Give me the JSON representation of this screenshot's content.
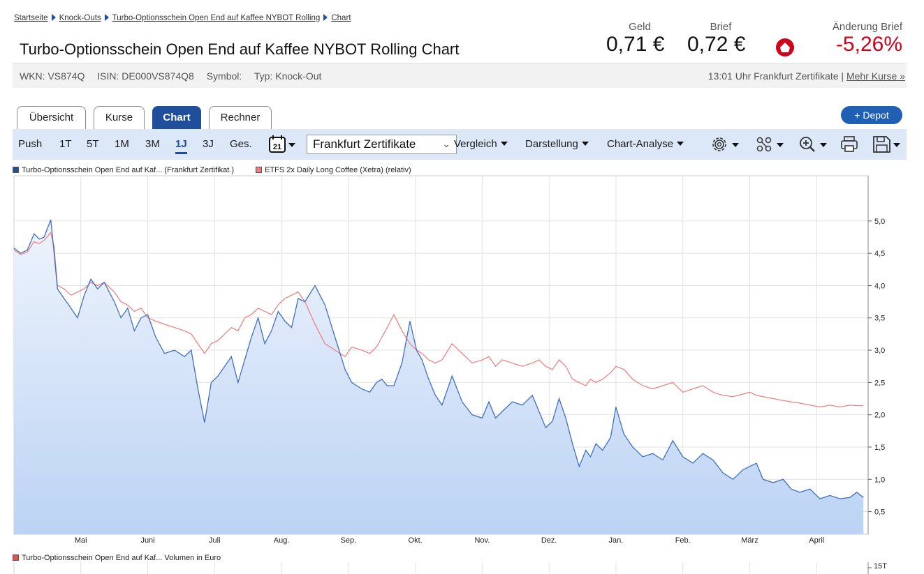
{
  "breadcrumb": {
    "items": [
      "Startseite",
      "Knock-Outs",
      "Turbo-Optionsschein Open End auf Kaffee NYBOT Rolling",
      "Chart"
    ]
  },
  "title": "Turbo-Optionsschein Open End auf Kaffee NYBOT Rolling Chart",
  "quote": {
    "geld_label": "Geld",
    "geld_value": "0,71 €",
    "brief_label": "Brief",
    "brief_value": "0,72 €",
    "change_label": "Änderung Brief",
    "change_value": "-5,26%",
    "change_color": "#d0021b"
  },
  "info": {
    "wkn": "WKN: VS874Q",
    "isin": "ISIN: DE000VS874Q8",
    "symbol": "Symbol:",
    "typ": "Typ: Knock-Out",
    "time_exchange": "13:01 Uhr Frankfurt Zertifikate |",
    "more_link": "Mehr Kurse »"
  },
  "tabs": [
    {
      "label": "Übersicht"
    },
    {
      "label": "Kurse"
    },
    {
      "label": "Chart"
    },
    {
      "label": "Rechner"
    }
  ],
  "depot_button": "+ Depot",
  "toolbar": {
    "periods": [
      "Push",
      "1T",
      "5T",
      "1M",
      "3M",
      "1J",
      "3J",
      "Ges."
    ],
    "active_period": "1J",
    "calendar_day": "21",
    "exchange_select": "Frankfurt Zertifikate",
    "menus": [
      "Vergleich",
      "Darstellung",
      "Chart-Analyse"
    ],
    "icons": [
      "settings-icon",
      "indicators-icon",
      "zoom-icon",
      "print-icon",
      "save-icon"
    ]
  },
  "colors": {
    "accent": "#1f4e9a",
    "series_main": "#3f6fc4",
    "series_compare": "#f27a7a",
    "area_top": "#eef4fd",
    "area_bottom": "#bcd3f4",
    "toolbar_bg": "#dce8f8"
  },
  "chart_data": {
    "type": "area",
    "title": "",
    "legend": [
      "Turbo-Optionsschein Open End auf Kaf... (Frankfurt Zertifikat.)",
      "ETFS 2x Daily Long Coffee (Xetra) (relativ)"
    ],
    "legend_position": "top-left",
    "x_ticks": [
      "Mai",
      "Juni",
      "Juli",
      "Aug.",
      "Sep.",
      "Okt.",
      "Nov.",
      "Dez.",
      "Jan.",
      "Feb.",
      "März",
      "April"
    ],
    "y_ticks": [
      "5,0",
      "4,5",
      "4,0",
      "3,5",
      "3,0",
      "2,5",
      "2,0",
      "1,5",
      "1,0",
      "0,5"
    ],
    "y_tick_values": [
      5.0,
      4.5,
      4.0,
      3.5,
      3.0,
      2.5,
      2.0,
      1.5,
      1.0,
      0.5
    ],
    "ylim": [
      0.15,
      5.7
    ],
    "xlim": [
      0,
      12.77
    ],
    "grid": true,
    "y_axis_side": "right",
    "series": [
      {
        "name": "Turbo-Optionsschein Open End auf Kaf... (Frankfurt Zertifikat.)",
        "style": "area",
        "x": [
          0,
          0.1,
          0.2,
          0.3,
          0.38,
          0.45,
          0.55,
          0.6,
          0.65,
          0.75,
          0.82,
          0.95,
          1.05,
          1.15,
          1.25,
          1.35,
          1.5,
          1.6,
          1.7,
          1.8,
          1.9,
          2.0,
          2.12,
          2.25,
          2.4,
          2.55,
          2.65,
          2.75,
          2.85,
          2.95,
          3.05,
          3.15,
          3.25,
          3.35,
          3.45,
          3.55,
          3.65,
          3.75,
          3.85,
          3.95,
          4.05,
          4.15,
          4.25,
          4.35,
          4.5,
          4.65,
          4.8,
          4.95,
          5.05,
          5.2,
          5.32,
          5.42,
          5.5,
          5.58,
          5.68,
          5.8,
          5.92,
          6.02,
          6.1,
          6.2,
          6.3,
          6.4,
          6.55,
          6.7,
          6.85,
          7.0,
          7.1,
          7.2,
          7.3,
          7.45,
          7.6,
          7.75,
          7.85,
          7.95,
          8.05,
          8.15,
          8.25,
          8.35,
          8.45,
          8.55,
          8.62,
          8.7,
          8.8,
          8.92,
          9.0,
          9.12,
          9.25,
          9.4,
          9.55,
          9.7,
          9.85,
          10.0,
          10.15,
          10.3,
          10.45,
          10.6,
          10.75,
          10.9,
          11.0,
          11.1,
          11.2,
          11.35,
          11.5,
          11.62,
          11.75,
          11.9,
          12.05,
          12.2,
          12.35,
          12.5,
          12.6,
          12.7
        ],
        "y": [
          4.58,
          4.5,
          4.55,
          4.8,
          4.72,
          4.75,
          5.02,
          4.5,
          3.95,
          3.8,
          3.7,
          3.5,
          3.85,
          4.1,
          3.95,
          4.05,
          3.75,
          3.5,
          3.65,
          3.3,
          3.5,
          3.55,
          3.2,
          2.95,
          3.0,
          2.9,
          3.0,
          2.4,
          1.88,
          2.5,
          2.6,
          2.75,
          2.9,
          2.5,
          2.85,
          3.2,
          3.5,
          3.1,
          3.3,
          3.6,
          3.45,
          3.35,
          3.8,
          3.75,
          4.0,
          3.7,
          3.2,
          2.7,
          2.5,
          2.4,
          2.35,
          2.5,
          2.55,
          2.45,
          2.45,
          2.8,
          3.45,
          3.0,
          2.85,
          2.55,
          2.3,
          2.15,
          2.6,
          2.2,
          2.0,
          1.95,
          2.2,
          1.95,
          2.05,
          2.2,
          2.15,
          2.3,
          2.05,
          1.8,
          1.9,
          2.25,
          1.95,
          1.55,
          1.2,
          1.45,
          1.35,
          1.55,
          1.45,
          1.65,
          2.12,
          1.7,
          1.5,
          1.35,
          1.4,
          1.3,
          1.6,
          1.35,
          1.25,
          1.4,
          1.3,
          1.1,
          1.0,
          1.15,
          1.2,
          1.25,
          1.0,
          0.95,
          1.0,
          0.85,
          0.8,
          0.85,
          0.7,
          0.75,
          0.7,
          0.72,
          0.8,
          0.72
        ]
      },
      {
        "name": "ETFS 2x Daily Long Coffee (Xetra) (relativ)",
        "style": "line",
        "x": [
          0,
          0.1,
          0.2,
          0.3,
          0.38,
          0.45,
          0.55,
          0.6,
          0.65,
          0.75,
          0.85,
          0.95,
          1.05,
          1.15,
          1.25,
          1.35,
          1.5,
          1.6,
          1.7,
          1.8,
          1.9,
          2.0,
          2.12,
          2.25,
          2.4,
          2.55,
          2.65,
          2.75,
          2.85,
          2.95,
          3.05,
          3.15,
          3.25,
          3.35,
          3.45,
          3.55,
          3.65,
          3.75,
          3.85,
          3.95,
          4.05,
          4.15,
          4.25,
          4.35,
          4.5,
          4.65,
          4.8,
          4.95,
          5.05,
          5.2,
          5.32,
          5.42,
          5.5,
          5.58,
          5.68,
          5.8,
          5.92,
          6.02,
          6.1,
          6.2,
          6.3,
          6.4,
          6.55,
          6.7,
          6.85,
          7.0,
          7.1,
          7.2,
          7.3,
          7.45,
          7.6,
          7.75,
          7.85,
          7.95,
          8.05,
          8.15,
          8.25,
          8.35,
          8.45,
          8.55,
          8.62,
          8.7,
          8.8,
          8.92,
          9.0,
          9.12,
          9.25,
          9.4,
          9.55,
          9.7,
          9.85,
          10.0,
          10.15,
          10.3,
          10.45,
          10.6,
          10.75,
          10.9,
          11.0,
          11.1,
          11.2,
          11.35,
          11.5,
          11.62,
          11.75,
          11.9,
          12.05,
          12.2,
          12.35,
          12.5,
          12.6,
          12.7
        ],
        "y": [
          4.55,
          4.48,
          4.52,
          4.68,
          4.65,
          4.7,
          4.82,
          4.6,
          4.0,
          3.95,
          3.85,
          3.9,
          3.95,
          4.05,
          4.0,
          4.05,
          3.9,
          3.75,
          3.7,
          3.6,
          3.65,
          3.5,
          3.45,
          3.4,
          3.35,
          3.3,
          3.25,
          3.1,
          2.95,
          3.1,
          3.15,
          3.25,
          3.35,
          3.3,
          3.5,
          3.55,
          3.65,
          3.6,
          3.55,
          3.7,
          3.8,
          3.85,
          3.9,
          3.75,
          3.4,
          3.1,
          3.0,
          2.9,
          3.05,
          3.0,
          2.95,
          3.05,
          3.2,
          3.35,
          3.55,
          3.3,
          3.1,
          3.0,
          2.95,
          2.85,
          2.8,
          2.85,
          3.1,
          2.95,
          2.8,
          2.85,
          2.9,
          2.75,
          2.85,
          2.8,
          2.75,
          2.8,
          2.85,
          2.75,
          2.7,
          2.85,
          2.75,
          2.55,
          2.5,
          2.45,
          2.55,
          2.5,
          2.55,
          2.65,
          2.75,
          2.7,
          2.55,
          2.45,
          2.4,
          2.45,
          2.5,
          2.35,
          2.4,
          2.45,
          2.35,
          2.3,
          2.28,
          2.32,
          2.35,
          2.3,
          2.28,
          2.25,
          2.22,
          2.2,
          2.18,
          2.15,
          2.12,
          2.15,
          2.12,
          2.15,
          2.14,
          2.14
        ]
      }
    ]
  },
  "volume": {
    "legend": "Turbo-Optionsschein Open End auf Kaf... Volumen in Euro",
    "tick": "15T"
  }
}
